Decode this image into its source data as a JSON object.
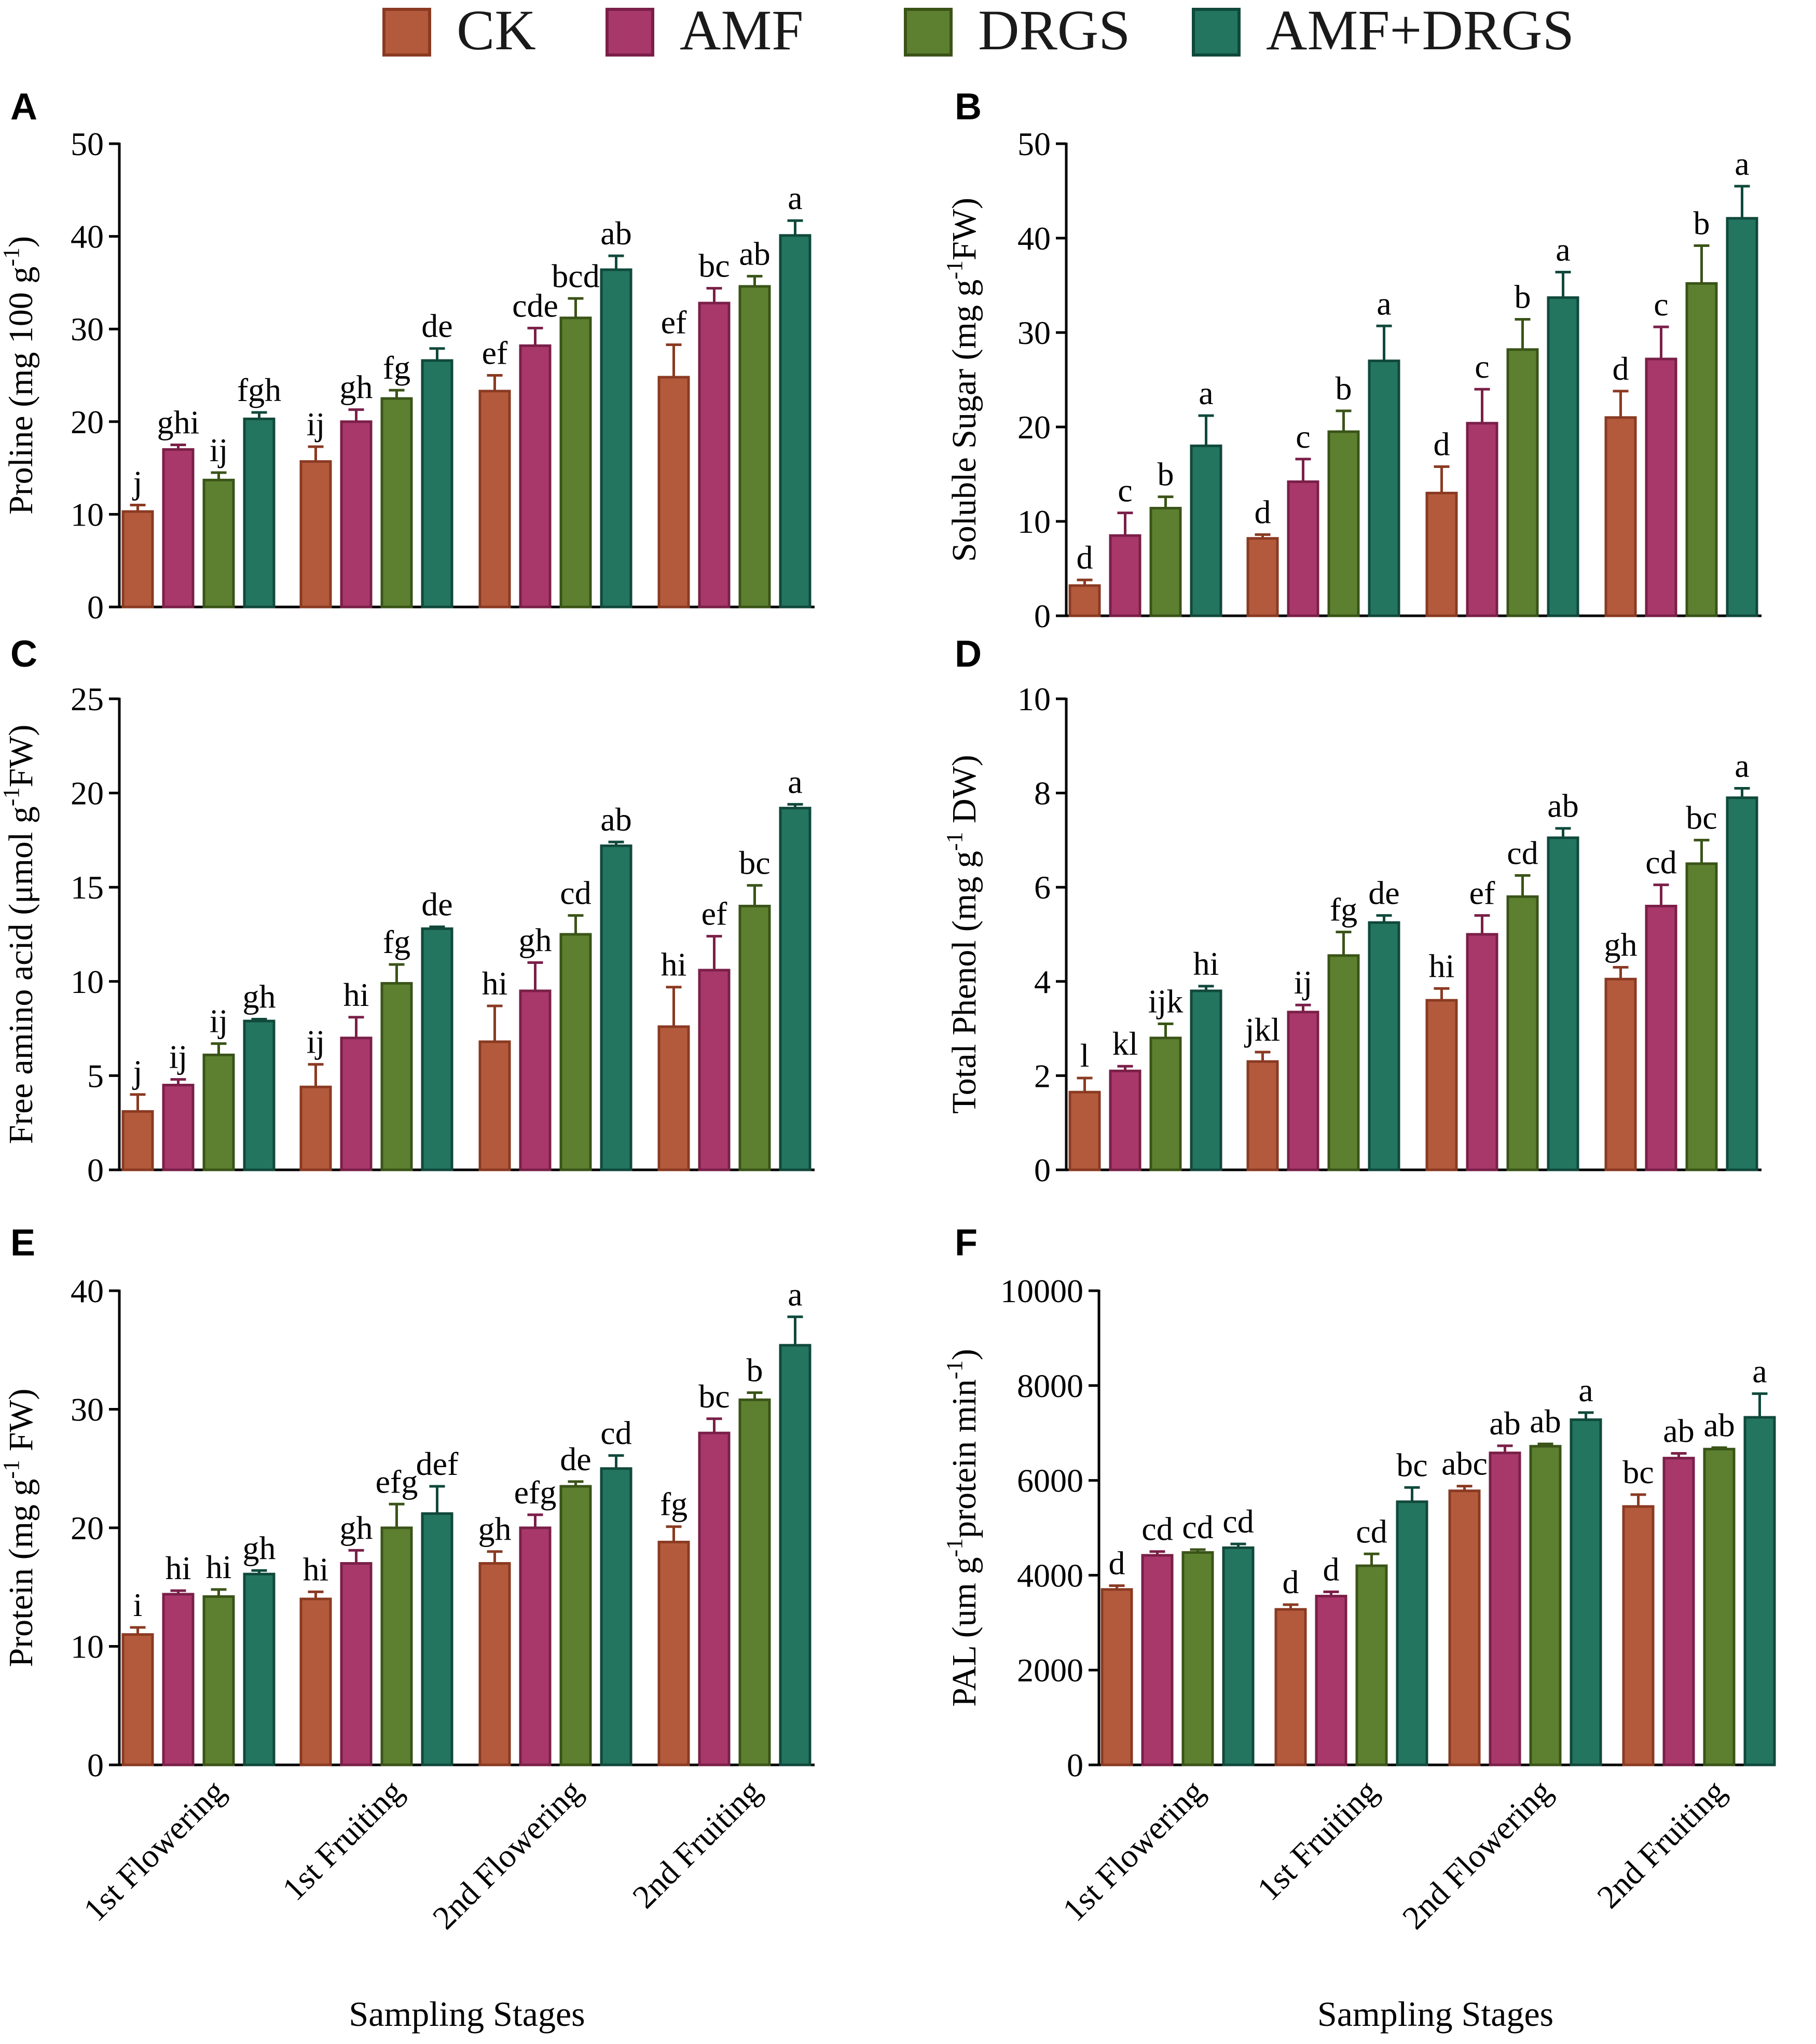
{
  "legend": [
    {
      "name": "CK",
      "color": "#b45a3c",
      "stroke": "#8a3a22"
    },
    {
      "name": "AMF",
      "color": "#a8386a",
      "stroke": "#7a1f48"
    },
    {
      "name": "DRGS",
      "color": "#5c8030",
      "stroke": "#3a5418"
    },
    {
      "name": "AMF+DRGS",
      "color": "#237560",
      "stroke": "#10493b"
    }
  ],
  "chart_data": [
    {
      "panel": "A",
      "type": "bar",
      "ylabel": "Proline (mg 100 g",
      "ylabel_sup": "-1",
      "ylabel_tail": ")",
      "ylim": [
        0,
        50
      ],
      "yticks": [
        "0",
        "10",
        "20",
        "30",
        "40",
        "50"
      ],
      "categories": [
        "1st Flowering",
        "1st Fruiting",
        "2nd Flowering",
        "2nd Fruiting"
      ],
      "xlabel": "",
      "series": [
        {
          "name": "CK",
          "values": [
            10.3,
            15.7,
            23.3,
            24.8
          ],
          "errors": [
            0.7,
            1.6,
            1.7,
            3.5
          ],
          "letters": [
            "j",
            "ij",
            "ef",
            "ef"
          ]
        },
        {
          "name": "AMF",
          "values": [
            17.0,
            20.0,
            28.2,
            32.8
          ],
          "errors": [
            0.5,
            1.3,
            1.9,
            1.6
          ],
          "letters": [
            "ghi",
            "gh",
            "cde",
            "bc"
          ]
        },
        {
          "name": "DRGS",
          "values": [
            13.7,
            22.5,
            31.2,
            34.6
          ],
          "errors": [
            0.8,
            0.9,
            2.1,
            1.1
          ],
          "letters": [
            "ij",
            "fg",
            "bcd",
            "ab"
          ]
        },
        {
          "name": "AMF+DRGS",
          "values": [
            20.3,
            26.6,
            36.4,
            40.1
          ],
          "errors": [
            0.7,
            1.3,
            1.5,
            1.6
          ],
          "letters": [
            "fgh",
            "de",
            "ab",
            "a"
          ]
        }
      ]
    },
    {
      "panel": "B",
      "type": "bar",
      "ylabel": "Soluble Sugar (mg g",
      "ylabel_sup": "-1",
      "ylabel_tail": "FW)",
      "ylim": [
        0,
        50
      ],
      "yticks": [
        "0",
        "10",
        "20",
        "30",
        "40",
        "50"
      ],
      "categories": [
        "1st Flowering",
        "1st Fruiting",
        "2nd Flowering",
        "2nd Fruiting"
      ],
      "xlabel": "",
      "series": [
        {
          "name": "CK",
          "values": [
            3.2,
            8.2,
            13.0,
            21.0
          ],
          "errors": [
            0.6,
            0.4,
            2.8,
            2.8
          ],
          "letters": [
            "d",
            "d",
            "d",
            "d"
          ]
        },
        {
          "name": "AMF",
          "values": [
            8.5,
            14.2,
            20.4,
            27.2
          ],
          "errors": [
            2.4,
            2.4,
            3.6,
            3.4
          ],
          "letters": [
            "c",
            "c",
            "c",
            "c"
          ]
        },
        {
          "name": "DRGS",
          "values": [
            11.4,
            19.5,
            28.2,
            35.2
          ],
          "errors": [
            1.2,
            2.2,
            3.2,
            4.0
          ],
          "letters": [
            "b",
            "b",
            "b",
            "b"
          ]
        },
        {
          "name": "AMF+DRGS",
          "values": [
            18.0,
            27.0,
            33.7,
            42.1
          ],
          "errors": [
            3.2,
            3.7,
            2.7,
            3.4
          ],
          "letters": [
            "a",
            "a",
            "a",
            "a"
          ]
        }
      ]
    },
    {
      "panel": "C",
      "type": "bar",
      "ylabel": "Free amino acid (μmol g",
      "ylabel_sup": "-1",
      "ylabel_tail": "FW)",
      "ylim": [
        0,
        25
      ],
      "yticks": [
        "0",
        "5",
        "10",
        "15",
        "20",
        "25"
      ],
      "categories": [
        "1st Flowering",
        "1st Fruiting",
        "2nd Flowering",
        "2nd Fruiting"
      ],
      "xlabel": "",
      "series": [
        {
          "name": "CK",
          "values": [
            3.1,
            4.4,
            6.8,
            7.6
          ],
          "errors": [
            0.9,
            1.2,
            1.9,
            2.1
          ],
          "letters": [
            "j",
            "ij",
            "hi",
            "hi"
          ]
        },
        {
          "name": "AMF",
          "values": [
            4.5,
            7.0,
            9.5,
            10.6
          ],
          "errors": [
            0.3,
            1.1,
            1.5,
            1.8
          ],
          "letters": [
            "ij",
            "hi",
            "gh",
            "ef"
          ]
        },
        {
          "name": "DRGS",
          "values": [
            6.1,
            9.9,
            12.5,
            14.0
          ],
          "errors": [
            0.6,
            1.0,
            1.0,
            1.1
          ],
          "letters": [
            "ij",
            "fg",
            "cd",
            "bc"
          ]
        },
        {
          "name": "AMF+DRGS",
          "values": [
            7.9,
            12.8,
            17.2,
            19.2
          ],
          "errors": [
            0.1,
            0.1,
            0.2,
            0.2
          ],
          "letters": [
            "gh",
            "de",
            "ab",
            "a"
          ]
        }
      ]
    },
    {
      "panel": "D",
      "type": "bar",
      "ylabel": "Total Phenol (mg g",
      "ylabel_sup": "-1",
      "ylabel_tail": " DW)",
      "ylim": [
        0,
        10
      ],
      "yticks": [
        "0",
        "2",
        "4",
        "6",
        "8",
        "10"
      ],
      "categories": [
        "1st Flowering",
        "1st Fruiting",
        "2nd Flowering",
        "2nd Fruiting"
      ],
      "xlabel": "",
      "series": [
        {
          "name": "CK",
          "values": [
            1.65,
            2.3,
            3.6,
            4.05
          ],
          "errors": [
            0.3,
            0.2,
            0.25,
            0.25
          ],
          "letters": [
            "l",
            "jkl",
            "hi",
            "gh"
          ]
        },
        {
          "name": "AMF",
          "values": [
            2.1,
            3.35,
            5.0,
            5.6
          ],
          "errors": [
            0.1,
            0.15,
            0.4,
            0.45
          ],
          "letters": [
            "kl",
            "ij",
            "ef",
            "cd"
          ]
        },
        {
          "name": "DRGS",
          "values": [
            2.8,
            4.55,
            5.8,
            6.5
          ],
          "errors": [
            0.3,
            0.5,
            0.45,
            0.5
          ],
          "letters": [
            "ijk",
            "fg",
            "cd",
            "bc"
          ]
        },
        {
          "name": "AMF+DRGS",
          "values": [
            3.8,
            5.25,
            7.05,
            7.9
          ],
          "errors": [
            0.1,
            0.15,
            0.2,
            0.2
          ],
          "letters": [
            "hi",
            "de",
            "ab",
            "a"
          ]
        }
      ]
    },
    {
      "panel": "E",
      "type": "bar",
      "ylabel": "Protein (mg g",
      "ylabel_sup": "-1",
      "ylabel_tail": " FW)",
      "ylim": [
        0,
        40
      ],
      "yticks": [
        "0",
        "10",
        "20",
        "30",
        "40"
      ],
      "categories": [
        "1st Flowering",
        "1st Fruiting",
        "2nd Flowering",
        "2nd Fruiting"
      ],
      "xlabel": "Sampling Stages",
      "series": [
        {
          "name": "CK",
          "values": [
            11.0,
            14.0,
            17.0,
            18.8
          ],
          "errors": [
            0.6,
            0.6,
            1.0,
            1.3
          ],
          "letters": [
            "i",
            "hi",
            "gh",
            "fg"
          ]
        },
        {
          "name": "AMF",
          "values": [
            14.4,
            17.0,
            20.0,
            28.0
          ],
          "errors": [
            0.3,
            1.1,
            1.1,
            1.2
          ],
          "letters": [
            "hi",
            "gh",
            "efg",
            "bc"
          ]
        },
        {
          "name": "DRGS",
          "values": [
            14.2,
            20.0,
            23.5,
            30.8
          ],
          "errors": [
            0.6,
            2.0,
            0.4,
            0.6
          ],
          "letters": [
            "hi",
            "efg",
            "de",
            "b"
          ]
        },
        {
          "name": "AMF+DRGS",
          "values": [
            16.1,
            21.2,
            25.0,
            35.4
          ],
          "errors": [
            0.3,
            2.3,
            1.1,
            2.4
          ],
          "letters": [
            "gh",
            "def",
            "cd",
            "a"
          ]
        }
      ]
    },
    {
      "panel": "F",
      "type": "bar",
      "ylabel": "PAL (um g",
      "ylabel_sup": "-1",
      "ylabel_tail": "protein min",
      "ylabel_sup2": "-1",
      "ylabel_tail2": ")",
      "ylim": [
        0,
        10000
      ],
      "yticks": [
        "0",
        "2000",
        "4000",
        "6000",
        "8000",
        "10000"
      ],
      "categories": [
        "1st Flowering",
        "1st Fruiting",
        "2nd Flowering",
        "2nd Fruiting"
      ],
      "xlabel": "Sampling Stages",
      "series": [
        {
          "name": "CK",
          "values": [
            3700,
            3280,
            5780,
            5450
          ],
          "errors": [
            80,
            100,
            100,
            250
          ],
          "letters": [
            "d",
            "d",
            "abc",
            "bc"
          ]
        },
        {
          "name": "AMF",
          "values": [
            4420,
            3560,
            6580,
            6470
          ],
          "errors": [
            80,
            90,
            150,
            100
          ],
          "letters": [
            "cd",
            "d",
            "ab",
            "ab"
          ]
        },
        {
          "name": "DRGS",
          "values": [
            4480,
            4200,
            6720,
            6660
          ],
          "errors": [
            60,
            250,
            50,
            30
          ],
          "letters": [
            "cd",
            "cd",
            "ab",
            "ab"
          ]
        },
        {
          "name": "AMF+DRGS",
          "values": [
            4580,
            5550,
            7280,
            7330
          ],
          "errors": [
            80,
            300,
            150,
            500
          ],
          "letters": [
            "cd",
            "bc",
            "a",
            "a"
          ]
        }
      ]
    }
  ]
}
